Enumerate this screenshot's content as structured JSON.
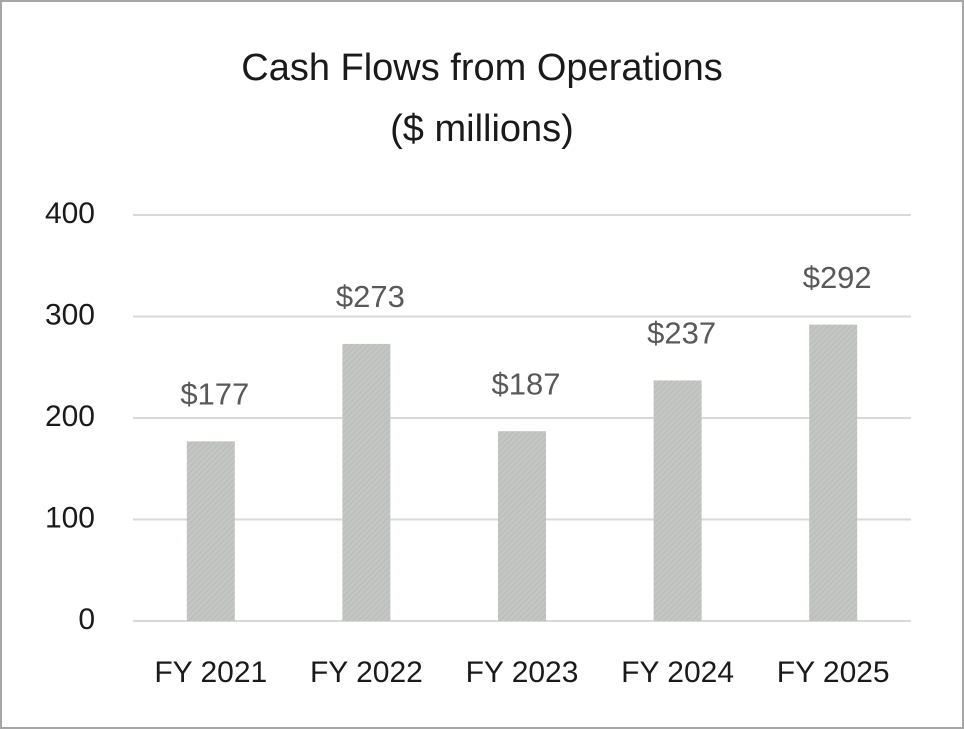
{
  "chart_data": {
    "type": "bar",
    "title": "Cash Flows from Operations",
    "subtitle": "($ millions)",
    "categories": [
      "FY 2021",
      "FY 2022",
      "FY 2023",
      "FY 2024",
      "FY 2025"
    ],
    "values": [
      177,
      273,
      187,
      237,
      292
    ],
    "value_labels": [
      "$177",
      "$273",
      "$187",
      "$237",
      "$292"
    ],
    "color": "#c3c6c3",
    "ylim": [
      0,
      400
    ],
    "yticks": [
      0,
      100,
      200,
      300,
      400
    ],
    "grid": true
  }
}
